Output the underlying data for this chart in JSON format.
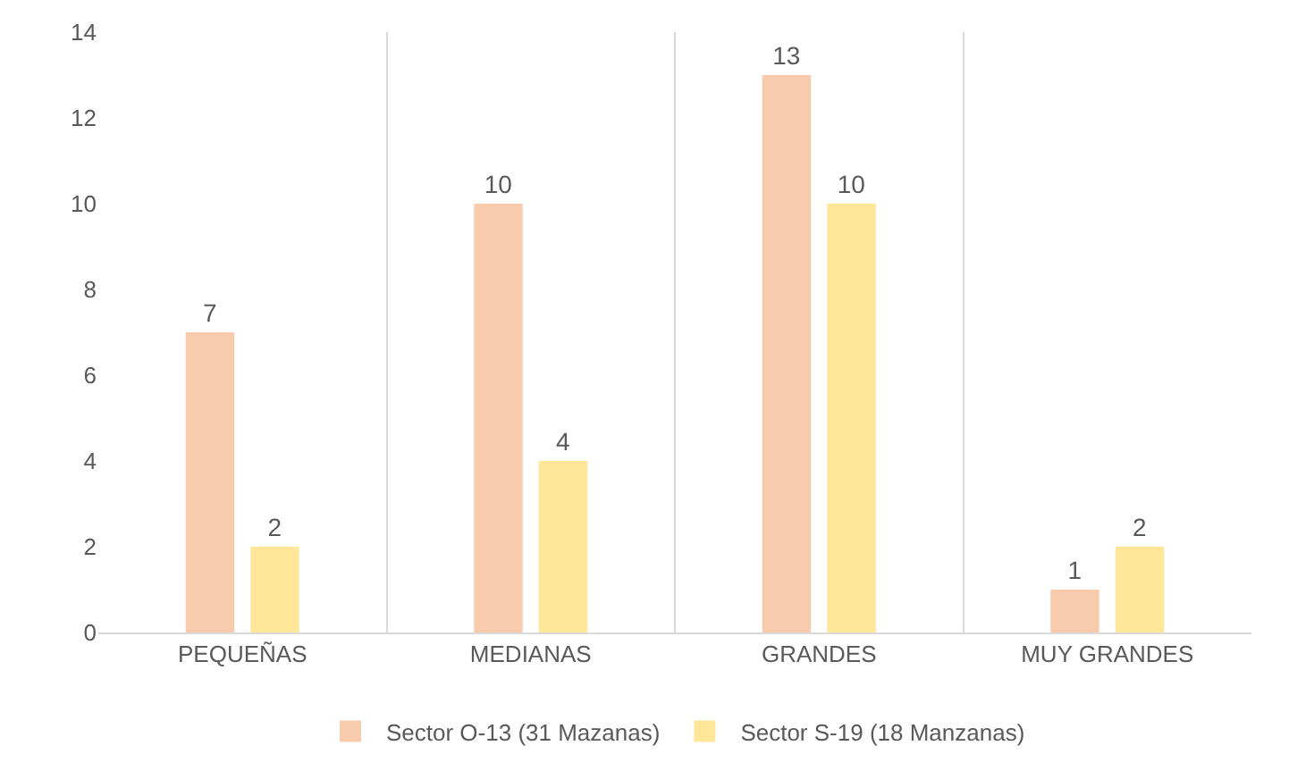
{
  "chart_data": {
    "type": "bar",
    "categories": [
      "PEQUEÑAS",
      "MEDIANAS",
      "GRANDES",
      "MUY GRANDES"
    ],
    "series": [
      {
        "name": "Sector O-13 (31 Mazanas)",
        "color": "#f8cbad",
        "values": [
          7,
          10,
          13,
          1
        ]
      },
      {
        "name": "Sector S-19 (18 Manzanas)",
        "color": "#ffe699",
        "values": [
          2,
          4,
          10,
          2
        ]
      }
    ],
    "ylim": [
      0,
      14
    ],
    "yticks": [
      0,
      2,
      4,
      6,
      8,
      10,
      12,
      14
    ],
    "grid": "x",
    "legend": "bottom",
    "data_labels": true
  }
}
